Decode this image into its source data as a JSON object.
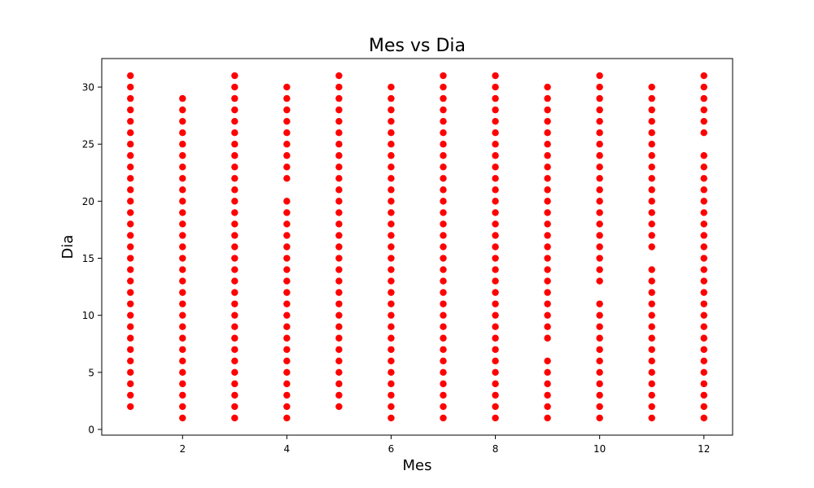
{
  "chart_data": {
    "type": "scatter",
    "title": "Mes vs Dia",
    "xlabel": "Mes",
    "ylabel": "Dia",
    "xlim": [
      0.45,
      12.55
    ],
    "ylim": [
      -0.5,
      32.5
    ],
    "xticks": [
      2,
      4,
      6,
      8,
      10,
      12
    ],
    "yticks": [
      0,
      5,
      10,
      15,
      20,
      25,
      30
    ],
    "grid": false,
    "marker_color": "#ff0000",
    "points_by_month": [
      {
        "x": 1,
        "y": [
          2,
          3,
          4,
          5,
          6,
          7,
          8,
          9,
          10,
          11,
          12,
          13,
          14,
          15,
          16,
          17,
          18,
          19,
          20,
          21,
          22,
          23,
          24,
          25,
          26,
          27,
          28,
          29,
          30,
          31
        ]
      },
      {
        "x": 2,
        "y": [
          1,
          2,
          3,
          4,
          5,
          6,
          7,
          8,
          9,
          10,
          11,
          12,
          13,
          14,
          15,
          16,
          17,
          18,
          19,
          20,
          21,
          22,
          23,
          24,
          25,
          26,
          27,
          28,
          29
        ]
      },
      {
        "x": 3,
        "y": [
          1,
          2,
          3,
          4,
          5,
          6,
          7,
          8,
          9,
          10,
          11,
          12,
          13,
          14,
          15,
          16,
          17,
          18,
          19,
          20,
          21,
          22,
          23,
          24,
          25,
          26,
          27,
          28,
          29,
          30,
          31
        ]
      },
      {
        "x": 4,
        "y": [
          1,
          2,
          3,
          4,
          5,
          6,
          7,
          8,
          9,
          10,
          11,
          12,
          13,
          14,
          15,
          16,
          17,
          18,
          19,
          20,
          22,
          23,
          24,
          25,
          26,
          27,
          28,
          29,
          30
        ]
      },
      {
        "x": 5,
        "y": [
          2,
          3,
          4,
          5,
          6,
          7,
          8,
          9,
          10,
          11,
          12,
          13,
          14,
          15,
          16,
          17,
          18,
          19,
          20,
          21,
          22,
          23,
          24,
          25,
          26,
          27,
          28,
          29,
          30,
          31
        ]
      },
      {
        "x": 6,
        "y": [
          1,
          2,
          3,
          4,
          5,
          6,
          7,
          8,
          9,
          10,
          11,
          12,
          13,
          14,
          15,
          16,
          17,
          18,
          19,
          20,
          21,
          22,
          23,
          24,
          25,
          26,
          27,
          28,
          29,
          30
        ]
      },
      {
        "x": 7,
        "y": [
          1,
          2,
          3,
          4,
          5,
          6,
          7,
          8,
          9,
          10,
          11,
          12,
          13,
          14,
          15,
          16,
          17,
          18,
          19,
          20,
          21,
          22,
          23,
          24,
          25,
          26,
          27,
          28,
          29,
          30,
          31
        ]
      },
      {
        "x": 8,
        "y": [
          1,
          2,
          3,
          4,
          5,
          6,
          7,
          8,
          9,
          10,
          11,
          12,
          13,
          14,
          15,
          16,
          17,
          18,
          19,
          20,
          21,
          22,
          23,
          24,
          25,
          26,
          27,
          28,
          29,
          30,
          31
        ]
      },
      {
        "x": 9,
        "y": [
          1,
          2,
          3,
          4,
          5,
          6,
          8,
          9,
          10,
          11,
          12,
          13,
          14,
          15,
          16,
          17,
          18,
          19,
          20,
          21,
          22,
          23,
          24,
          25,
          26,
          27,
          28,
          29,
          30
        ]
      },
      {
        "x": 10,
        "y": [
          1,
          2,
          3,
          4,
          5,
          6,
          7,
          8,
          9,
          10,
          11,
          13,
          14,
          15,
          16,
          17,
          18,
          19,
          20,
          21,
          22,
          23,
          24,
          25,
          26,
          27,
          28,
          29,
          30,
          31
        ]
      },
      {
        "x": 11,
        "y": [
          1,
          2,
          3,
          4,
          5,
          6,
          7,
          8,
          9,
          10,
          11,
          12,
          13,
          14,
          16,
          17,
          18,
          19,
          20,
          21,
          22,
          23,
          24,
          25,
          26,
          27,
          28,
          29,
          30
        ]
      },
      {
        "x": 12,
        "y": [
          1,
          2,
          3,
          4,
          5,
          6,
          7,
          8,
          9,
          10,
          11,
          12,
          13,
          14,
          15,
          16,
          17,
          18,
          19,
          20,
          21,
          22,
          23,
          24,
          26,
          27,
          28,
          29,
          30,
          31
        ]
      }
    ]
  }
}
